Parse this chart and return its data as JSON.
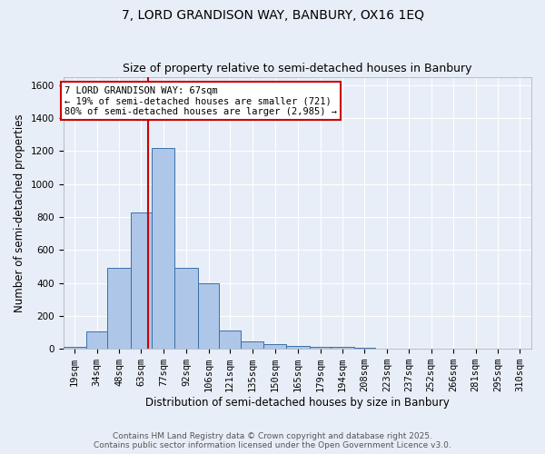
{
  "title": "7, LORD GRANDISON WAY, BANBURY, OX16 1EQ",
  "subtitle": "Size of property relative to semi-detached houses in Banbury",
  "xlabel": "Distribution of semi-detached houses by size in Banbury",
  "ylabel": "Number of semi-detached properties",
  "footer_line1": "Contains HM Land Registry data © Crown copyright and database right 2025.",
  "footer_line2": "Contains public sector information licensed under the Open Government Licence v3.0.",
  "bin_labels": [
    "19sqm",
    "34sqm",
    "48sqm",
    "63sqm",
    "77sqm",
    "92sqm",
    "106sqm",
    "121sqm",
    "135sqm",
    "150sqm",
    "165sqm",
    "179sqm",
    "194sqm",
    "208sqm",
    "223sqm",
    "237sqm",
    "252sqm",
    "266sqm",
    "281sqm",
    "295sqm",
    "310sqm"
  ],
  "bar_values": [
    10,
    105,
    490,
    825,
    1220,
    490,
    400,
    110,
    48,
    30,
    20,
    10,
    10,
    5,
    0,
    0,
    0,
    0,
    0,
    0,
    0
  ],
  "bar_color": "#aec6e8",
  "bar_edge_color": "#3a6fa8",
  "background_color": "#e8eef7",
  "grid_color": "#ffffff",
  "vline_color": "#cc0000",
  "vline_label_title": "7 LORD GRANDISON WAY: 67sqm",
  "vline_label_line2": "← 19% of semi-detached houses are smaller (721)",
  "vline_label_line3": "80% of semi-detached houses are larger (2,985) →",
  "annotation_box_edge": "#cc0000",
  "ylim": [
    0,
    1650
  ],
  "yticks": [
    0,
    200,
    400,
    600,
    800,
    1000,
    1200,
    1400,
    1600
  ],
  "bin_edges": [
    11.5,
    26.5,
    40.5,
    55.5,
    69.5,
    84.5,
    99.5,
    113.5,
    127.5,
    142.5,
    157.5,
    172.5,
    186.5,
    201.5,
    215.5,
    230.5,
    244.5,
    259.5,
    273.5,
    288.5,
    302.5,
    317.5
  ],
  "title_fontsize": 10,
  "subtitle_fontsize": 9,
  "label_fontsize": 8.5,
  "tick_fontsize": 7.5,
  "footer_fontsize": 6.5,
  "ann_fontsize": 7.5
}
